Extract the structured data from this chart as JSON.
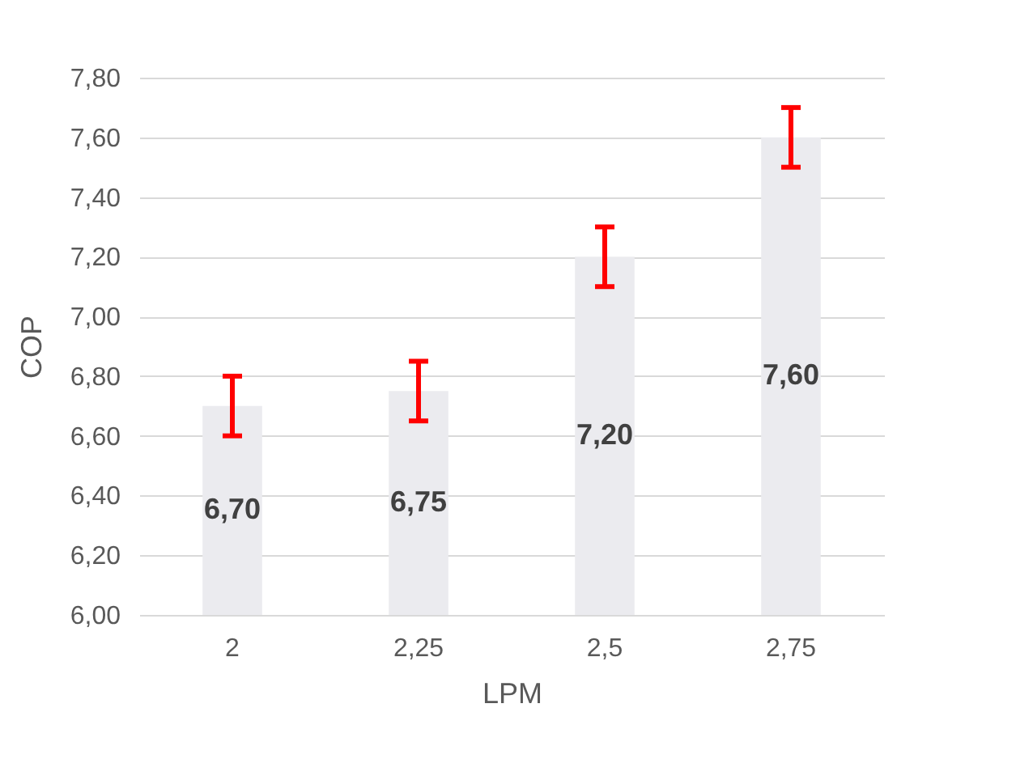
{
  "chart_data": {
    "type": "bar",
    "xlabel": "LPM",
    "ylabel": "COP",
    "categories": [
      "2",
      "2,25",
      "2,5",
      "2,75"
    ],
    "values": [
      6.7,
      6.75,
      7.2,
      7.6
    ],
    "value_labels": [
      "6,70",
      "6,75",
      "7,20",
      "7,60"
    ],
    "errors": [
      0.1,
      0.1,
      0.1,
      0.1
    ],
    "color": "#ebebef",
    "ylim": [
      6.0,
      7.8
    ],
    "yticks": [
      {
        "value": 6.0,
        "label": "6,00"
      },
      {
        "value": 6.2,
        "label": "6,20"
      },
      {
        "value": 6.4,
        "label": "6,40"
      },
      {
        "value": 6.6,
        "label": "6,60"
      },
      {
        "value": 6.8,
        "label": "6,80"
      },
      {
        "value": 7.0,
        "label": "7,00"
      },
      {
        "value": 7.2,
        "label": "7,20"
      },
      {
        "value": 7.4,
        "label": "7,40"
      },
      {
        "value": 7.6,
        "label": "7,60"
      },
      {
        "value": 7.8,
        "label": "7,80"
      }
    ],
    "grid": "y"
  }
}
